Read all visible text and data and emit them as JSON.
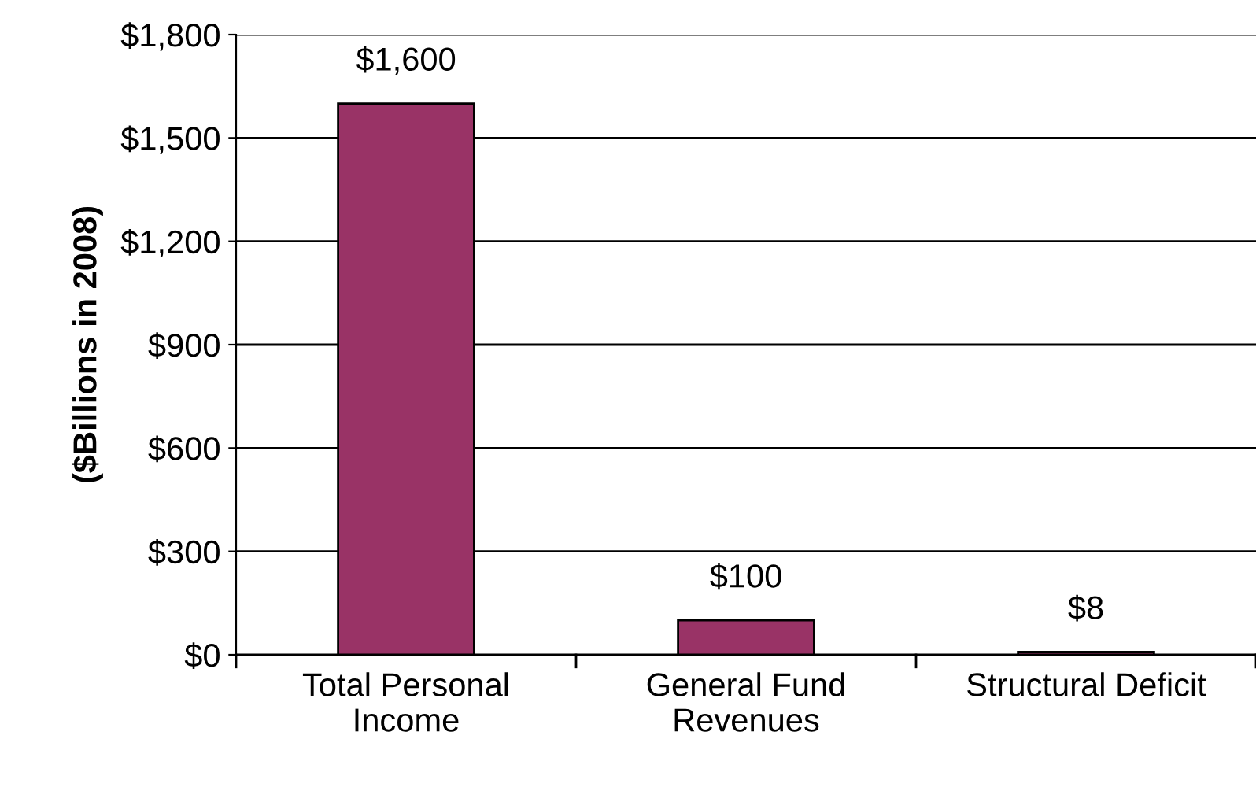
{
  "chart_data": {
    "type": "bar",
    "ylabel": "($Billions in 2008)",
    "categories": [
      "Total Personal\nIncome",
      "General Fund\nRevenues",
      "Structural Deficit"
    ],
    "values": [
      1600,
      100,
      8
    ],
    "color": "#993366",
    "value_labels": [
      "$1,600",
      "$100",
      "$8"
    ],
    "ylim": [
      0,
      1800
    ],
    "yticks": [
      {
        "value": 0,
        "label": "$0"
      },
      {
        "value": 300,
        "label": "$300"
      },
      {
        "value": 600,
        "label": "$600"
      },
      {
        "value": 900,
        "label": "$900"
      },
      {
        "value": 1200,
        "label": "$1,200"
      },
      {
        "value": 1500,
        "label": "$1,500"
      },
      {
        "value": 1800,
        "label": "$1,800"
      }
    ],
    "grid": "y",
    "legend": false
  }
}
